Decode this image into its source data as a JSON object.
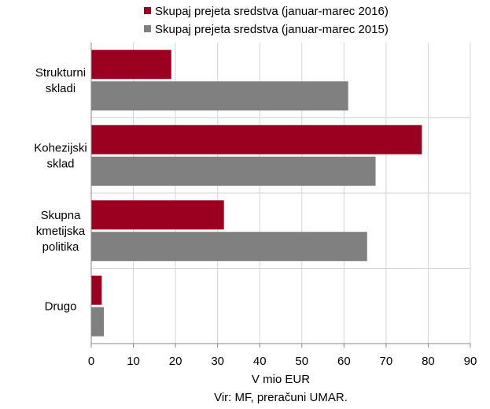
{
  "chart_data": {
    "type": "bar",
    "orientation": "horizontal",
    "categories": [
      [
        "Strukturni",
        "skladi"
      ],
      [
        "Kohezijski",
        "sklad"
      ],
      [
        "Skupna",
        "kmetijska",
        "politika"
      ],
      [
        "Drugo"
      ]
    ],
    "series": [
      {
        "name": "Skupaj prejeta sredstva (januar-marec 2016)",
        "color": "#9b0020",
        "values": [
          19,
          78.5,
          31.5,
          2.5
        ]
      },
      {
        "name": "Skupaj prejeta sredstva (januar-marec 2015)",
        "color": "#808080",
        "values": [
          61,
          67.5,
          65.5,
          3
        ]
      }
    ],
    "xlim": [
      0,
      90
    ],
    "xticks": [
      0,
      10,
      20,
      30,
      40,
      50,
      60,
      70,
      80,
      90
    ],
    "xlabel": "V mio EUR",
    "source": "Vir: MF, preračuni UMAR.",
    "grid": true,
    "legend_position": "top"
  }
}
